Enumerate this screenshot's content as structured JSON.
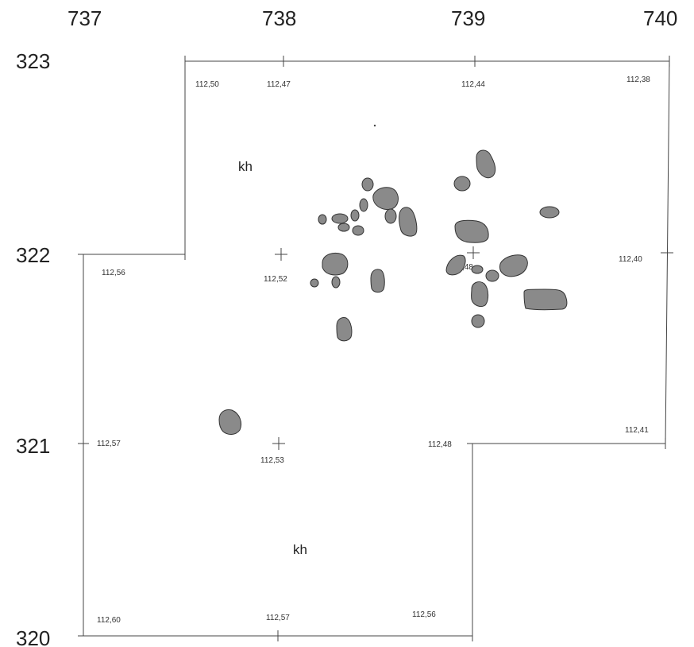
{
  "grid_x_labels": [
    "737",
    "738",
    "739",
    "740"
  ],
  "grid_y_labels": [
    "323",
    "322",
    "321",
    "320"
  ],
  "elevations": {
    "e1": "112,50",
    "e2": "112,47",
    "e3": "112,44",
    "e4": "112,38",
    "e5": "112,56",
    "e6": "112,52",
    "e7": "112,48",
    "e8": "112,40",
    "e9": "112,57",
    "e10": "112,53",
    "e11": "112,48",
    "e12": "112,41",
    "e13": "112,60",
    "e14": "112,57",
    "e15": "112,56"
  },
  "zone_labels": {
    "z1": "kh",
    "z2": "kh"
  },
  "stone_fill": "#8a8a8a"
}
